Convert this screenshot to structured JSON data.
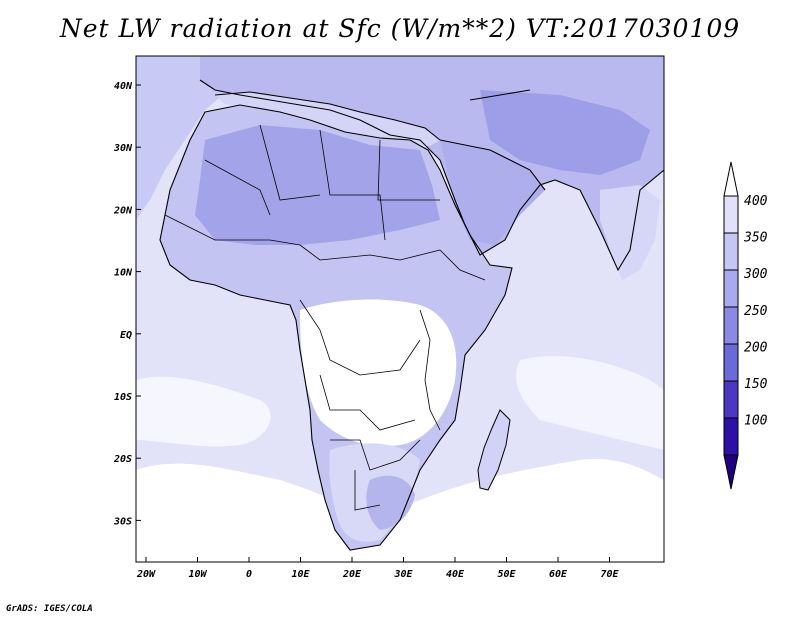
{
  "title": "Net LW radiation at Sfc (W/m**2) VT:2017030109",
  "credit": "GrADS: IGES/COLA",
  "axes": {
    "x_ticks": [
      "20W",
      "10W",
      "0",
      "10E",
      "20E",
      "30E",
      "40E",
      "50E",
      "60E",
      "70E"
    ],
    "y_ticks": [
      "40N",
      "30N",
      "20N",
      "10N",
      "EQ",
      "10S",
      "20S",
      "30S"
    ]
  },
  "colorbar": {
    "labels": [
      "400",
      "350",
      "300",
      "250",
      "200",
      "150",
      "100"
    ],
    "colors": [
      "#ffffff",
      "#e1e1fa",
      "#c6c6f4",
      "#a9a9ee",
      "#8a8ae4",
      "#6a6ad8",
      "#4c36c4",
      "#2d10a8",
      "#1f0080"
    ]
  },
  "map": {
    "ocean_color": "#e2e2f9",
    "land_color": "#c0c0f2",
    "sahara_color": "#a6a6ea",
    "clear_color": "#ffffff",
    "border_color": "#000000"
  }
}
